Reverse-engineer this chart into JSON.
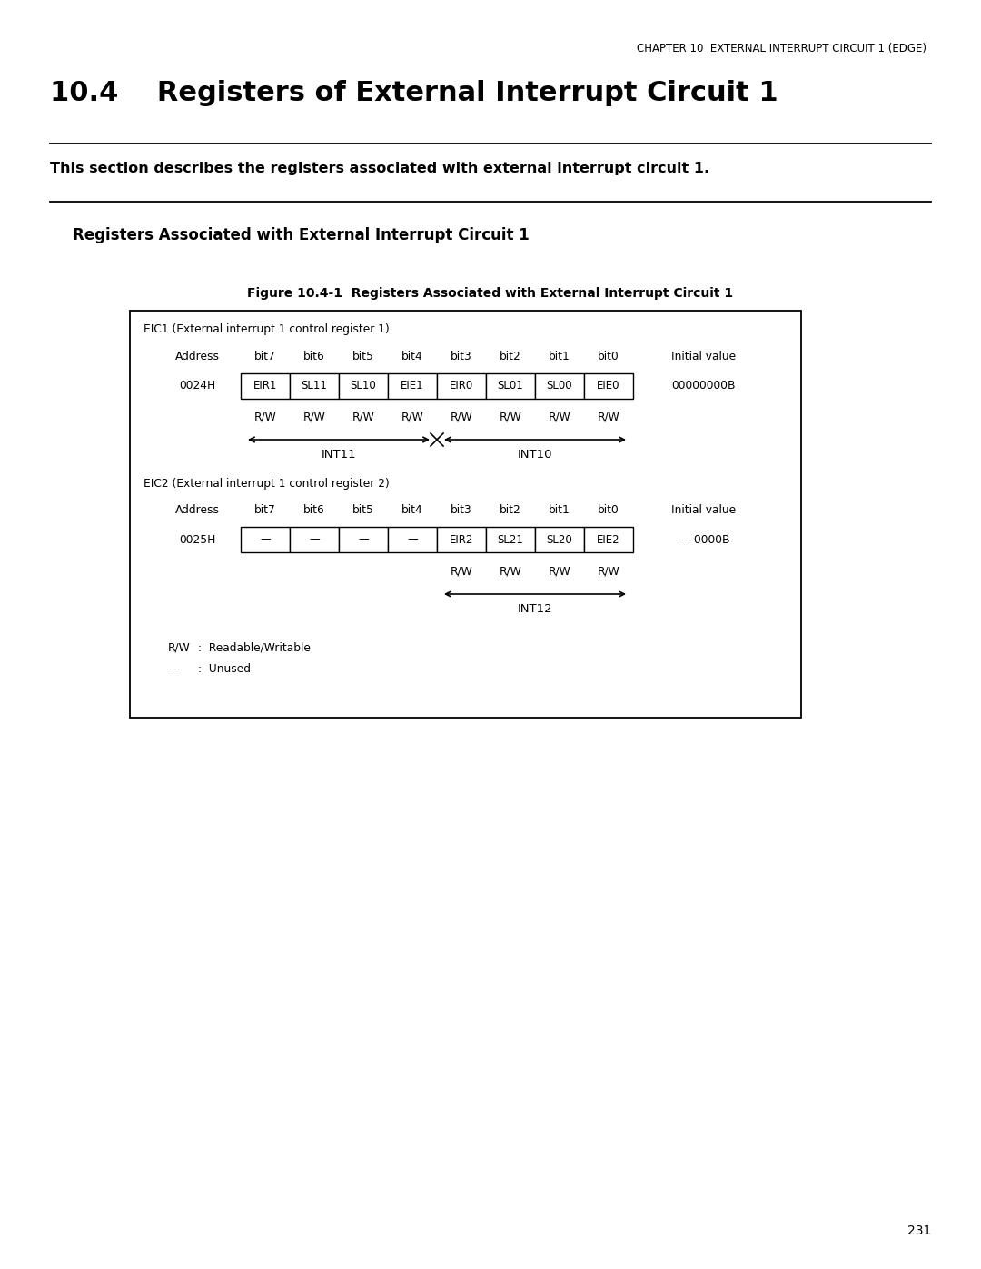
{
  "chapter_header": "CHAPTER 10  EXTERNAL INTERRUPT CIRCUIT 1 (EDGE)",
  "main_title": "10.4    Registers of External Interrupt Circuit 1",
  "section_desc": "This section describes the registers associated with external interrupt circuit 1.",
  "subsection_title": "Registers Associated with External Interrupt Circuit 1",
  "figure_title": "Figure 10.4-1  Registers Associated with External Interrupt Circuit 1",
  "page_number": "231",
  "eic1_label": "EIC1 (External interrupt 1 control register 1)",
  "eic2_label": "EIC2 (External interrupt 1 control register 2)",
  "addr_label": "Address",
  "bit_labels": [
    "bit7",
    "bit6",
    "bit5",
    "bit4",
    "bit3",
    "bit2",
    "bit1",
    "bit0"
  ],
  "initial_value_label": "Initial value",
  "eic1_address": "0024H",
  "eic1_bits": [
    "EIR1",
    "SL11",
    "SL10",
    "EIE1",
    "EIR0",
    "SL01",
    "SL00",
    "EIE0"
  ],
  "eic1_initial": "00000000B",
  "eic1_rw": [
    "R/W",
    "R/W",
    "R/W",
    "R/W",
    "R/W",
    "R/W",
    "R/W",
    "R/W"
  ],
  "eic1_int_left_label": "INT11",
  "eic1_int_right_label": "INT10",
  "eic2_address": "0025H",
  "eic2_bits": [
    "—",
    "—",
    "—",
    "—",
    "EIR2",
    "SL21",
    "SL20",
    "EIE2"
  ],
  "eic2_initial": "----0000B",
  "eic2_rw": [
    "",
    "",
    "",
    "",
    "R/W",
    "R/W",
    "R/W",
    "R/W"
  ],
  "eic2_int_label": "INT12",
  "legend_rw_key": "R/W",
  "legend_rw_val": "Readable/Writable",
  "legend_dash_key": "—",
  "legend_dash_val": "Unused",
  "bg_color": "#ffffff",
  "text_color": "#000000"
}
